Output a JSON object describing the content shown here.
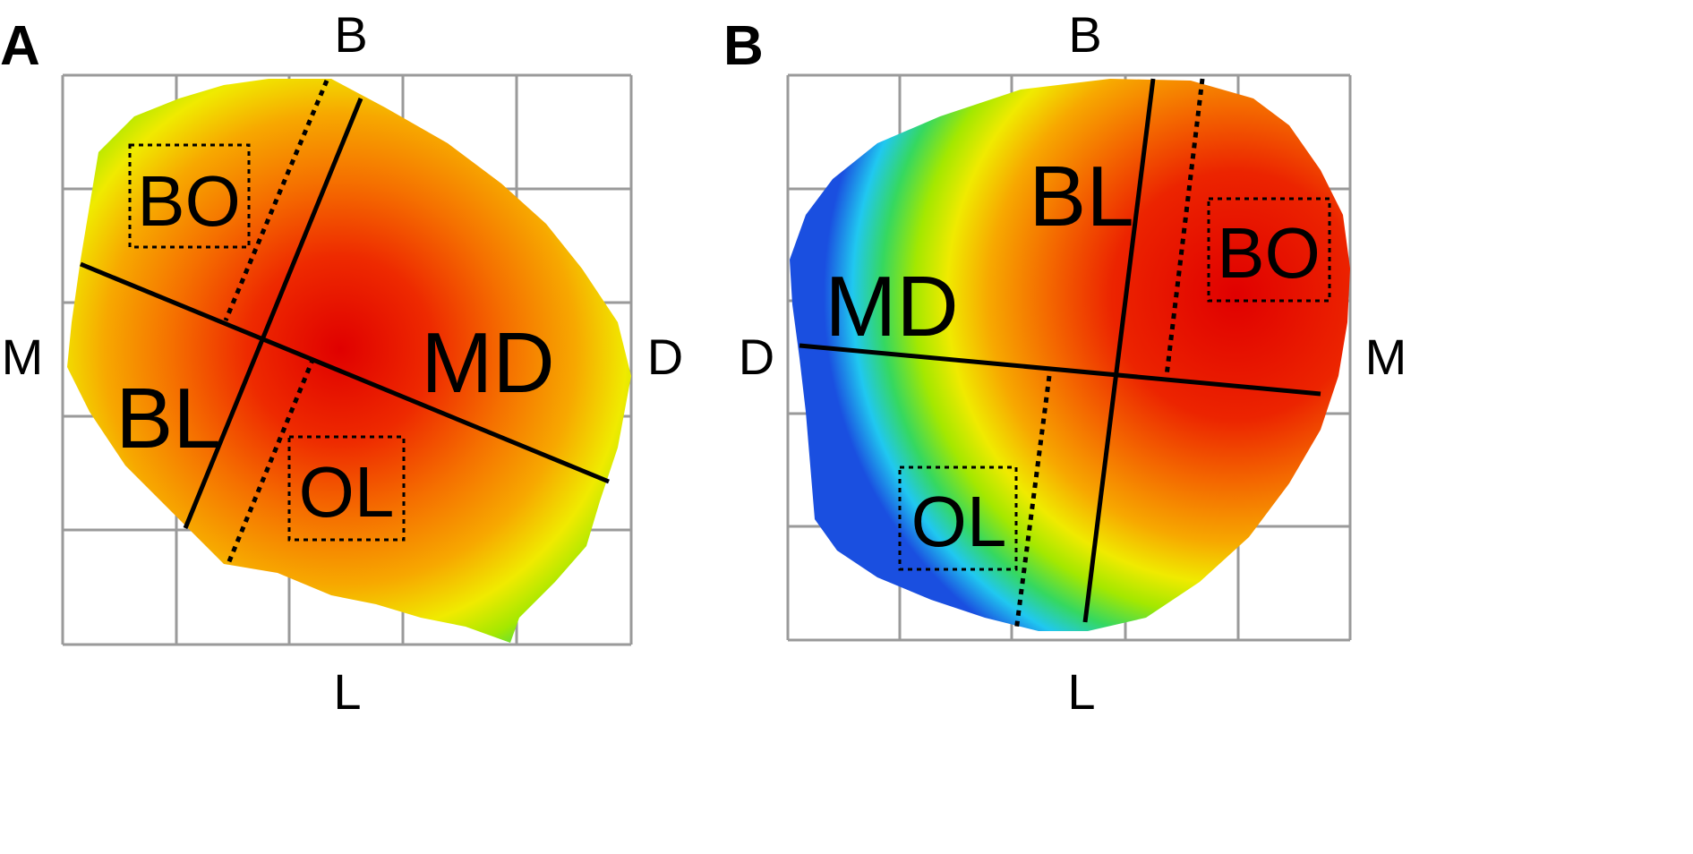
{
  "panels": [
    {
      "letter": "A",
      "axes": {
        "top": "B",
        "bottom": "L",
        "left": "M",
        "right": "D"
      },
      "regions": {
        "bo": "BO",
        "ol": "OL",
        "md": "MD",
        "bl": "BL"
      }
    },
    {
      "letter": "B",
      "axes": {
        "top": "B",
        "bottom": "L",
        "left": "D",
        "right": "M"
      },
      "regions": {
        "bo": "BO",
        "ol": "OL",
        "md": "MD",
        "bl": "BL"
      }
    }
  ],
  "colors": {
    "outer": "#1a4fe0",
    "cyan": "#20c8f0",
    "green": "#3ddc3d",
    "yellow": "#f0f000",
    "orange": "#f5a400",
    "deep_orange": "#f06a00",
    "red": "#e30000"
  }
}
